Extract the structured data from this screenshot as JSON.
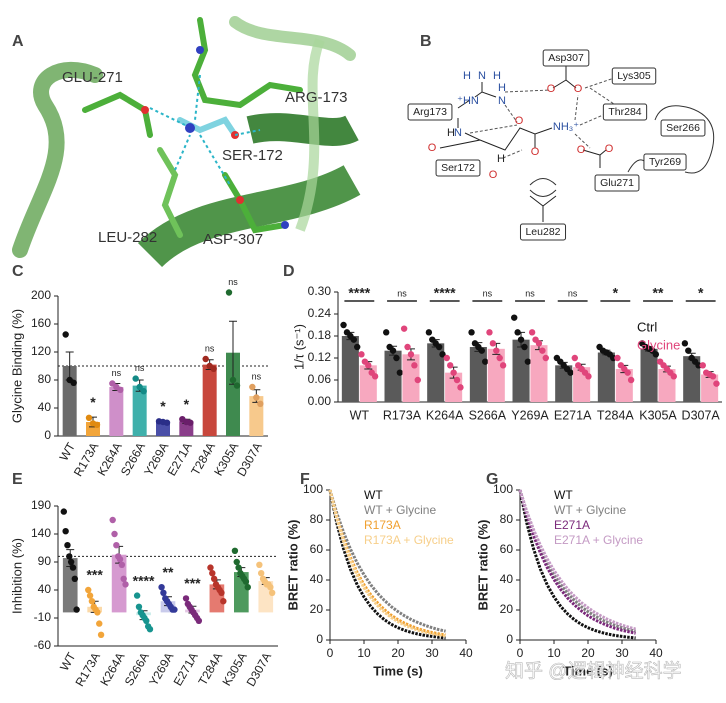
{
  "structure": {
    "label": "A",
    "residue_labels": [
      "GLU-271",
      "ARG-173",
      "SER-172",
      "LEU-282",
      "ASP-307"
    ]
  },
  "diagram": {
    "label": "B",
    "residues": [
      "Asp307",
      "Lys305",
      "Arg173",
      "Thr284",
      "Ser266",
      "Ser172",
      "Tyr269",
      "Glu271",
      "Leu282"
    ],
    "atoms": [
      "H",
      "N",
      "H",
      "⁺HN",
      "N",
      "H",
      "H",
      "N",
      "O",
      "O",
      "O",
      "NH₃⁺",
      "O",
      "O",
      "O",
      "O",
      "H",
      "O"
    ]
  },
  "chart_data": [
    {
      "type": "bar",
      "panel_label": "C",
      "y_label": "Glycine Binding (%)",
      "categories": [
        "WT",
        "R173A",
        "K264A",
        "S266A",
        "Y269A",
        "E271A",
        "T284A",
        "K305A",
        "D307A"
      ],
      "values": [
        100,
        20,
        70,
        72,
        20,
        21,
        102,
        119,
        57
      ],
      "errors": [
        20,
        7,
        5,
        8,
        1,
        3,
        7,
        45,
        9
      ],
      "points": [
        [
          145,
          80,
          76
        ],
        [
          26,
          18,
          16
        ],
        [
          75,
          70,
          66
        ],
        [
          82,
          70,
          64
        ],
        [
          21,
          20,
          19
        ],
        [
          24,
          20,
          19
        ],
        [
          110,
          100,
          96
        ],
        [
          205,
          80,
          72
        ],
        [
          70,
          55,
          46
        ]
      ],
      "colors": [
        "#6b6b6b",
        "#f2a53a",
        "#cf8fc9",
        "#3fb0ab",
        "#4a4fa8",
        "#8a3e8a",
        "#c8473c",
        "#3f8a4f",
        "#f7c98c"
      ],
      "point_colors": [
        "#111111",
        "#e08a10",
        "#b060a8",
        "#138a86",
        "#2a2e88",
        "#6a1e6a",
        "#a02a20",
        "#1f6a2f",
        "#e0a060"
      ],
      "significance": [
        null,
        "*",
        "ns",
        "ns",
        "*",
        "*",
        "ns",
        "ns",
        "ns"
      ],
      "reference_line": 100,
      "ylim": [
        0,
        200
      ],
      "yticks": [
        0,
        40,
        80,
        120,
        160,
        200
      ]
    },
    {
      "type": "bar",
      "panel_label": "D",
      "y_label": "1/τ (s⁻¹)",
      "categories": [
        "WT",
        "R173A",
        "K264A",
        "S266A",
        "Y269A",
        "E271A",
        "T284A",
        "K305A",
        "D307A"
      ],
      "series": [
        {
          "name": "Ctrl",
          "color": "#5a5a5a",
          "point_color": "#111111",
          "values": [
            0.18,
            0.14,
            0.16,
            0.15,
            0.17,
            0.1,
            0.135,
            0.145,
            0.125
          ],
          "errors": [
            0.01,
            0.012,
            0.01,
            0.012,
            0.02,
            0.008,
            0.006,
            0.006,
            0.008
          ],
          "points": [
            [
              0.21,
              0.19,
              0.18,
              0.17,
              0.15
            ],
            [
              0.19,
              0.15,
              0.14,
              0.12,
              0.08
            ],
            [
              0.19,
              0.17,
              0.16,
              0.15,
              0.13
            ],
            [
              0.19,
              0.16,
              0.15,
              0.14,
              0.11
            ],
            [
              0.23,
              0.19,
              0.17,
              0.15,
              0.11
            ],
            [
              0.12,
              0.11,
              0.1,
              0.09,
              0.08
            ],
            [
              0.15,
              0.14,
              0.135,
              0.13,
              0.12
            ],
            [
              0.16,
              0.15,
              0.145,
              0.14,
              0.13
            ],
            [
              0.16,
              0.14,
              0.12,
              0.11,
              0.1
            ]
          ]
        },
        {
          "name": "Glycine",
          "color": "#f7a8bf",
          "point_color": "#e0457b",
          "values": [
            0.1,
            0.13,
            0.08,
            0.145,
            0.155,
            0.095,
            0.09,
            0.09,
            0.075
          ],
          "errors": [
            0.01,
            0.015,
            0.015,
            0.015,
            0.012,
            0.008,
            0.01,
            0.008,
            0.008
          ],
          "points": [
            [
              0.13,
              0.11,
              0.1,
              0.08,
              0.07
            ],
            [
              0.2,
              0.15,
              0.13,
              0.1,
              0.06
            ],
            [
              0.12,
              0.1,
              0.08,
              0.06,
              0.04
            ],
            [
              0.19,
              0.16,
              0.14,
              0.12,
              0.1
            ],
            [
              0.19,
              0.17,
              0.16,
              0.14,
              0.12
            ],
            [
              0.12,
              0.1,
              0.09,
              0.08,
              0.07
            ],
            [
              0.12,
              0.1,
              0.09,
              0.08,
              0.06
            ],
            [
              0.11,
              0.1,
              0.09,
              0.08,
              0.07
            ],
            [
              0.1,
              0.08,
              0.075,
              0.07,
              0.05
            ]
          ]
        }
      ],
      "significance": [
        "****",
        "ns",
        "****",
        "ns",
        "ns",
        "ns",
        "*",
        "**",
        "*"
      ],
      "legend": "top-right",
      "ylim": [
        0,
        0.3
      ],
      "yticks": [
        {
          "value": 0,
          "label": "0.00"
        },
        0.06,
        0.12,
        0.18,
        0.24,
        {
          "value": 0.3,
          "label": "0.30"
        }
      ]
    },
    {
      "type": "bar",
      "panel_label": "E",
      "y_label": "Inhibition (%)",
      "categories": [
        "WT",
        "R173A",
        "K264A",
        "S266A",
        "Y269A",
        "E271A",
        "T284A",
        "K305A",
        "D307A"
      ],
      "values": [
        97,
        10,
        103,
        -5,
        20,
        5,
        50,
        72,
        56
      ],
      "errors": [
        15,
        10,
        15,
        8,
        8,
        6,
        8,
        8,
        6
      ],
      "points": [
        [
          180,
          145,
          120,
          100,
          90,
          80,
          60,
          5
        ],
        [
          40,
          30,
          20,
          10,
          5,
          0,
          -20,
          -40
        ],
        [
          165,
          140,
          120,
          100,
          95,
          85,
          60,
          50
        ],
        [
          30,
          10,
          0,
          -5,
          -10,
          -15,
          -25,
          -30
        ],
        [
          45,
          35,
          25,
          20,
          15,
          10,
          5,
          5
        ],
        [
          25,
          15,
          10,
          5,
          0,
          -5,
          -10,
          -15
        ],
        [
          80,
          70,
          60,
          50,
          45,
          40,
          35,
          20
        ],
        [
          110,
          90,
          80,
          70,
          65,
          60,
          55,
          45
        ],
        [
          85,
          70,
          60,
          55,
          50,
          50,
          45,
          35
        ]
      ],
      "colors": [
        "#7a7a7a",
        "#fbd9a8",
        "#d69ad0",
        "#c8ecea",
        "#c9cbeb",
        "#e3c6e3",
        "#e57a70",
        "#4e9a5e",
        "#fde4c4"
      ],
      "point_colors": [
        "#111111",
        "#f2a53a",
        "#b060a8",
        "#17948f",
        "#333a99",
        "#7a2a7a",
        "#b8352b",
        "#1f6a2f",
        "#f5c27a"
      ],
      "significance": [
        null,
        "***",
        null,
        "****",
        "**",
        "***",
        null,
        null,
        null
      ],
      "reference_line": 100,
      "ylim": [
        -60,
        190
      ],
      "yticks": [
        -60,
        -10,
        40,
        90,
        140,
        190
      ]
    },
    {
      "type": "line",
      "panel_label": "F",
      "x_label": "Time (s)",
      "y_label": "BRET ratio (%)",
      "x": [
        0,
        2,
        4,
        6,
        8,
        10,
        12,
        14,
        16,
        18,
        20,
        22,
        24,
        26,
        28,
        30,
        32,
        34
      ],
      "series": [
        {
          "name": "WT",
          "color": "#111111",
          "values": [
            100,
            77.9,
            60.7,
            47.2,
            36.8,
            28.7,
            22.3,
            17.4,
            13.5,
            10.5,
            8.2,
            6.4,
            5.0,
            3.9,
            3.0,
            2.4,
            1.8,
            1.4
          ]
        },
        {
          "name": "WT + Glycine",
          "color": "#808080",
          "values": [
            100,
            84.6,
            71.7,
            60.7,
            51.3,
            43.5,
            36.8,
            31.1,
            26.4,
            22.3,
            18.9,
            16.0,
            13.5,
            11.5,
            9.7,
            8.2,
            6.9,
            5.9
          ]
        },
        {
          "name": "R173A",
          "color": "#f0a030",
          "values": [
            100,
            81.9,
            67.0,
            54.9,
            44.9,
            36.8,
            30.1,
            24.7,
            20.2,
            16.5,
            13.5,
            11.1,
            9.1,
            7.4,
            6.1,
            5.0,
            4.1,
            3.3
          ]
        },
        {
          "name": "R173A + Glycine",
          "color": "#f7cf8a",
          "values": [
            100,
            81.0,
            65.6,
            53.2,
            43.1,
            34.9,
            28.3,
            22.9,
            18.6,
            15.0,
            12.2,
            9.9,
            8.0,
            6.5,
            5.2,
            4.3,
            3.4,
            2.8
          ]
        }
      ],
      "legend": "top-right",
      "xlim": [
        0,
        40
      ],
      "xticks": [
        0,
        10,
        20,
        30,
        40
      ],
      "ylim": [
        0,
        100
      ],
      "yticks": [
        0,
        20,
        40,
        60,
        80,
        100
      ]
    },
    {
      "type": "line",
      "panel_label": "G",
      "x_label": "Time (s)",
      "y_label": "BRET ratio (%)",
      "x": [
        0,
        2,
        4,
        6,
        8,
        10,
        12,
        14,
        16,
        18,
        20,
        22,
        24,
        26,
        28,
        30,
        32,
        34
      ],
      "series": [
        {
          "name": "WT",
          "color": "#111111",
          "values": [
            100,
            77.9,
            60.7,
            47.2,
            36.8,
            28.7,
            22.3,
            17.4,
            13.5,
            10.5,
            8.2,
            6.4,
            5.0,
            3.9,
            3.0,
            2.4,
            1.8,
            1.4
          ]
        },
        {
          "name": "WT + Glycine",
          "color": "#808080",
          "values": [
            100,
            84.6,
            71.7,
            60.7,
            51.3,
            43.5,
            36.8,
            31.1,
            26.4,
            22.3,
            18.9,
            16.0,
            13.5,
            11.5,
            9.7,
            8.2,
            6.9,
            5.9
          ]
        },
        {
          "name": "E271A",
          "color": "#7b2a7b",
          "values": [
            100,
            83.4,
            69.5,
            58.0,
            48.3,
            40.3,
            33.6,
            28.0,
            23.4,
            19.5,
            16.2,
            13.5,
            11.3,
            9.4,
            7.8,
            6.5,
            5.5,
            4.5
          ]
        },
        {
          "name": "E271A + Glycine",
          "color": "#c49ac4",
          "values": [
            100,
            85.7,
            73.5,
            63.1,
            54.1,
            46.4,
            39.8,
            34.0,
            29.2,
            25.0,
            21.5,
            18.4,
            15.8,
            13.5,
            11.6,
            9.9,
            8.5,
            7.3
          ]
        }
      ],
      "legend": "top-right",
      "xlim": [
        0,
        40
      ],
      "xticks": [
        0,
        10,
        20,
        30,
        40
      ],
      "ylim": [
        0,
        100
      ],
      "yticks": [
        0,
        20,
        40,
        60,
        80,
        100
      ]
    }
  ],
  "watermark": "知乎 @逻辑神经科学"
}
